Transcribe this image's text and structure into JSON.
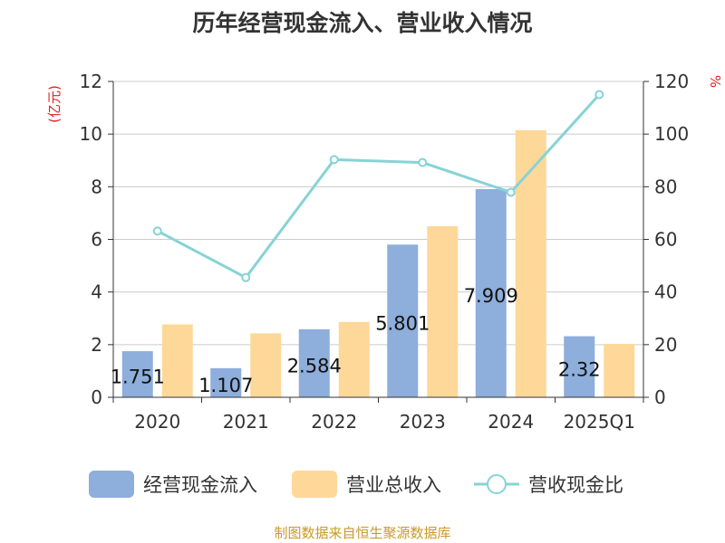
{
  "chart_data": {
    "type": "bar",
    "title": "历年经营现金流入、营业收入情况",
    "categories": [
      "2020",
      "2021",
      "2022",
      "2023",
      "2024",
      "2025Q1"
    ],
    "y_left": {
      "unit": "(亿元)",
      "min": 0,
      "max": 12,
      "ticks": [
        0,
        2,
        4,
        6,
        8,
        10,
        12
      ]
    },
    "y_right": {
      "unit": "%",
      "min": 0,
      "max": 120,
      "ticks": [
        0,
        20,
        40,
        60,
        80,
        100,
        120
      ]
    },
    "series": [
      {
        "name": "经营现金流入",
        "kind": "bar",
        "axis": "left",
        "color": "#8eaedb",
        "values": [
          1.751,
          1.107,
          2.584,
          5.801,
          7.909,
          2.32
        ],
        "labels": [
          "1.751",
          "1.107",
          "2.584",
          "5.801",
          "7.909",
          "2.32"
        ]
      },
      {
        "name": "营业总收入",
        "kind": "bar",
        "axis": "left",
        "color": "#fed899",
        "values": [
          2.77,
          2.43,
          2.86,
          6.5,
          10.15,
          2.03
        ]
      },
      {
        "name": "营收现金比",
        "kind": "line",
        "axis": "right",
        "color": "#86d3d6",
        "values": [
          63.2,
          45.5,
          90.3,
          89.2,
          77.9,
          115.0
        ]
      }
    ],
    "grid": true,
    "legend_position": "bottom"
  },
  "source_note": "制图数据来自恒生聚源数据库"
}
